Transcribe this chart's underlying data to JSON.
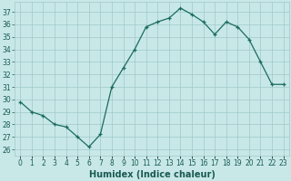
{
  "x": [
    0,
    1,
    2,
    3,
    4,
    5,
    6,
    7,
    8,
    9,
    10,
    11,
    12,
    13,
    14,
    15,
    16,
    17,
    18,
    19,
    20,
    21,
    22,
    23
  ],
  "y": [
    29.8,
    29.0,
    28.7,
    28.0,
    27.8,
    27.0,
    26.2,
    27.2,
    31.0,
    32.5,
    34.0,
    35.8,
    36.2,
    36.5,
    37.3,
    36.8,
    36.2,
    35.2,
    36.2,
    35.8,
    34.8,
    33.0,
    31.2,
    31.2
  ],
  "line_color": "#1a6b5e",
  "marker": "+",
  "bg_color": "#c8e8e8",
  "grid_color": "#a0c8c8",
  "xlabel": "Humidex (Indice chaleur)",
  "ylim": [
    25.5,
    37.8
  ],
  "xlim": [
    -0.5,
    23.5
  ],
  "yticks": [
    26,
    27,
    28,
    29,
    30,
    31,
    32,
    33,
    34,
    35,
    36,
    37
  ],
  "xtick_labels": [
    "0",
    "1",
    "2",
    "3",
    "4",
    "5",
    "6",
    "7",
    "8",
    "9",
    "10",
    "11",
    "12",
    "13",
    "14",
    "15",
    "16",
    "17",
    "18",
    "19",
    "20",
    "21",
    "22",
    "23"
  ],
  "font_color": "#1a5a50",
  "tick_fontsize": 5.5,
  "xlabel_fontsize": 7.0,
  "linewidth": 0.9,
  "markersize": 3.5
}
